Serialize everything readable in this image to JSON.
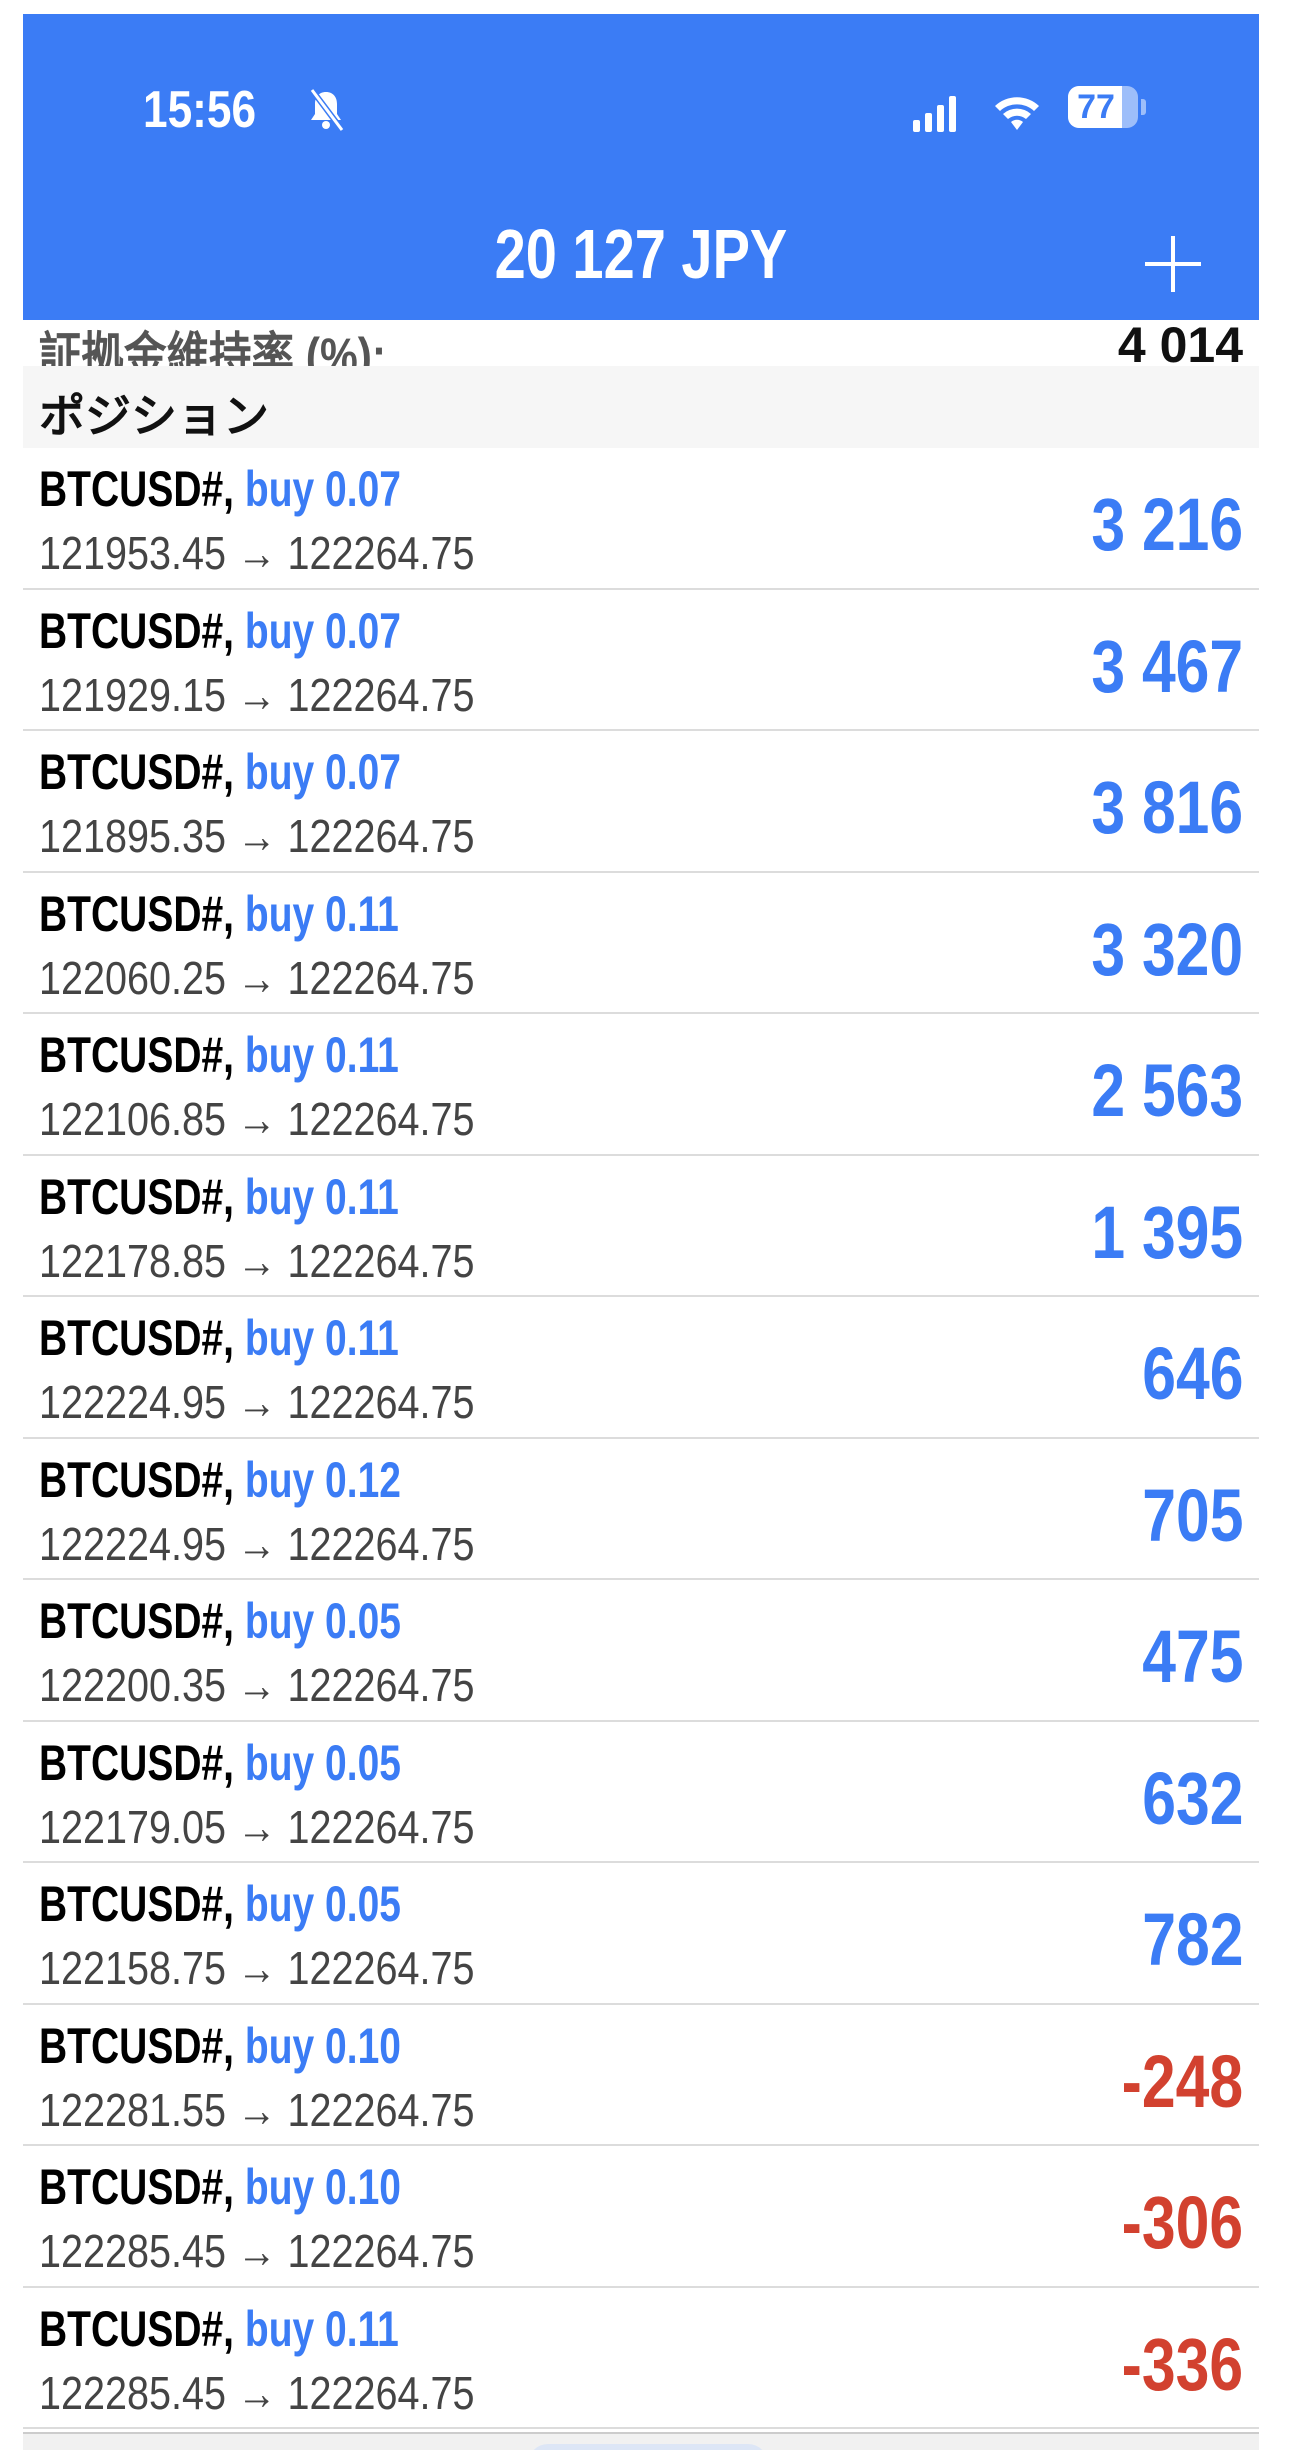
{
  "status_bar": {
    "time": "15:56",
    "icons": [
      "bell-slash-icon",
      "signal-icon",
      "wifi-icon",
      "battery-icon"
    ],
    "battery": "77",
    "battery_level": 77
  },
  "header": {
    "title": "20 127 JPY",
    "add_icon": "plus-icon",
    "color": "#3b7cf5"
  },
  "margin_level": {
    "label": "証拠金維持率 (%):",
    "value": "4 014"
  },
  "section": {
    "title": "ポジション"
  },
  "colors": {
    "profit": "#3b7cf5",
    "loss": "#d2412f"
  },
  "positions": [
    {
      "symbol": "BTCUSD#,",
      "side": "buy 0.07",
      "open": "121953.45",
      "arrow": "→",
      "current": "122264.75",
      "profit": "3 216",
      "negative": false
    },
    {
      "symbol": "BTCUSD#,",
      "side": "buy 0.07",
      "open": "121929.15",
      "arrow": "→",
      "current": "122264.75",
      "profit": "3 467",
      "negative": false
    },
    {
      "symbol": "BTCUSD#,",
      "side": "buy 0.07",
      "open": "121895.35",
      "arrow": "→",
      "current": "122264.75",
      "profit": "3 816",
      "negative": false
    },
    {
      "symbol": "BTCUSD#,",
      "side": "buy 0.11",
      "open": "122060.25",
      "arrow": "→",
      "current": "122264.75",
      "profit": "3 320",
      "negative": false
    },
    {
      "symbol": "BTCUSD#,",
      "side": "buy 0.11",
      "open": "122106.85",
      "arrow": "→",
      "current": "122264.75",
      "profit": "2 563",
      "negative": false
    },
    {
      "symbol": "BTCUSD#,",
      "side": "buy 0.11",
      "open": "122178.85",
      "arrow": "→",
      "current": "122264.75",
      "profit": "1 395",
      "negative": false
    },
    {
      "symbol": "BTCUSD#,",
      "side": "buy 0.11",
      "open": "122224.95",
      "arrow": "→",
      "current": "122264.75",
      "profit": "646",
      "negative": false
    },
    {
      "symbol": "BTCUSD#,",
      "side": "buy 0.12",
      "open": "122224.95",
      "arrow": "→",
      "current": "122264.75",
      "profit": "705",
      "negative": false
    },
    {
      "symbol": "BTCUSD#,",
      "side": "buy 0.05",
      "open": "122200.35",
      "arrow": "→",
      "current": "122264.75",
      "profit": "475",
      "negative": false
    },
    {
      "symbol": "BTCUSD#,",
      "side": "buy 0.05",
      "open": "122179.05",
      "arrow": "→",
      "current": "122264.75",
      "profit": "632",
      "negative": false
    },
    {
      "symbol": "BTCUSD#,",
      "side": "buy 0.05",
      "open": "122158.75",
      "arrow": "→",
      "current": "122264.75",
      "profit": "782",
      "negative": false
    },
    {
      "symbol": "BTCUSD#,",
      "side": "buy 0.10",
      "open": "122281.55",
      "arrow": "→",
      "current": "122264.75",
      "profit": "-248",
      "negative": true
    },
    {
      "symbol": "BTCUSD#,",
      "side": "buy 0.10",
      "open": "122285.45",
      "arrow": "→",
      "current": "122264.75",
      "profit": "-306",
      "negative": true
    },
    {
      "symbol": "BTCUSD#,",
      "side": "buy 0.11",
      "open": "122285.45",
      "arrow": "→",
      "current": "122264.75",
      "profit": "-336",
      "negative": true
    }
  ]
}
